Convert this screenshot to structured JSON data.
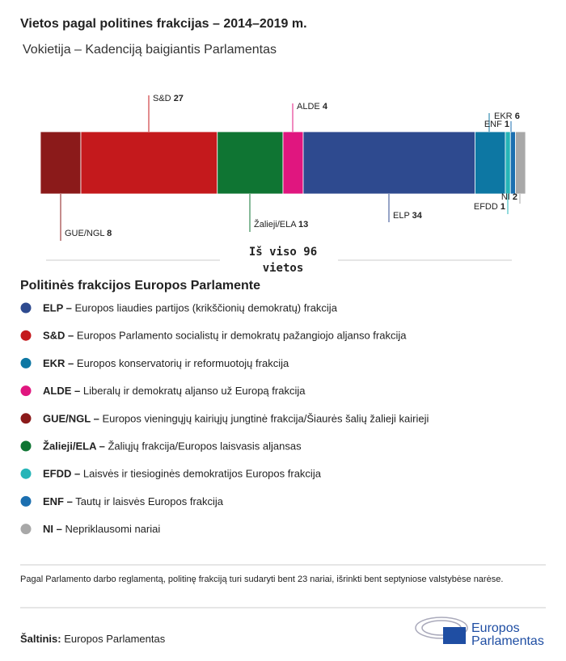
{
  "chart_data": {
    "type": "stacked-bar",
    "title": "Vietos pagal politines frakcijas – 2014–2019 m.",
    "subtitle": "Vokietija – Kadenciją baigiantis Parlamentas",
    "total_label": "Iš viso 96 vietos",
    "series": [
      {
        "name": "GUE/NGL",
        "color": "#8b1a1a",
        "values": [
          8
        ]
      },
      {
        "name": "S&D",
        "color": "#c4191c",
        "values": [
          27
        ]
      },
      {
        "name": "Žalieji/ELA",
        "color": "#0f7533",
        "values": [
          13
        ]
      },
      {
        "name": "ALDE",
        "color": "#e0167f",
        "values": [
          4
        ]
      },
      {
        "name": "ELP",
        "color": "#2e4a8f",
        "values": [
          34
        ]
      },
      {
        "name": "EKR",
        "color": "#0d77a3",
        "values": [
          6
        ]
      },
      {
        "name": "EFDD",
        "color": "#26b5b8",
        "values": [
          1
        ]
      },
      {
        "name": "ENF",
        "color": "#1b6fb0",
        "values": [
          1
        ]
      },
      {
        "name": "NI",
        "color": "#a8a8a8",
        "values": [
          2
        ]
      }
    ],
    "xlim": [
      0,
      96
    ]
  },
  "legend": {
    "title": "Politinės frakcijos Europos Parlamente",
    "items": [
      {
        "label": "ELP –",
        "description": "Europos liaudies partijos (krikščionių demokratų) frakcija",
        "color": "#2e4a8f"
      },
      {
        "label": "S&D –",
        "description": "Europos Parlamento socialistų ir demokratų pažangiojo aljanso frakcija",
        "color": "#c4191c"
      },
      {
        "label": "EKR –",
        "description": "Europos konservatorių ir reformuotojų frakcija",
        "color": "#0d77a3"
      },
      {
        "label": "ALDE –",
        "description": "Liberalų ir demokratų aljanso už Europą frakcija",
        "color": "#e0167f"
      },
      {
        "label": "GUE/NGL –",
        "description": "Europos vieningųjų kairiųjų jungtinė frakcija/Šiaurės šalių žalieji kairieji",
        "color": "#8b1a1a"
      },
      {
        "label": "Žalieji/ELA –",
        "description": "Žaliųjų frakcija/Europos laisvasis aljansas",
        "color": "#0f7533"
      },
      {
        "label": "EFDD –",
        "description": "Laisvės ir tiesioginės demokratijos Europos frakcija",
        "color": "#26b5b8"
      },
      {
        "label": "ENF –",
        "description": "Tautų ir laisvės Europos frakcija",
        "color": "#1b6fb0"
      },
      {
        "label": "NI –",
        "description": "Nepriklausomi nariai",
        "color": "#a8a8a8"
      }
    ]
  },
  "note": "Pagal Parlamento darbo reglamentą, politinę frakciją turi sudaryti bent 23 nariai, išrinkti bent septyniose valstybėse narėse.",
  "source": {
    "label": "Šaltinis:",
    "text": "Europos Parlamentas"
  },
  "logo": {
    "line1": "Europos",
    "line2": "Parlamentas"
  }
}
